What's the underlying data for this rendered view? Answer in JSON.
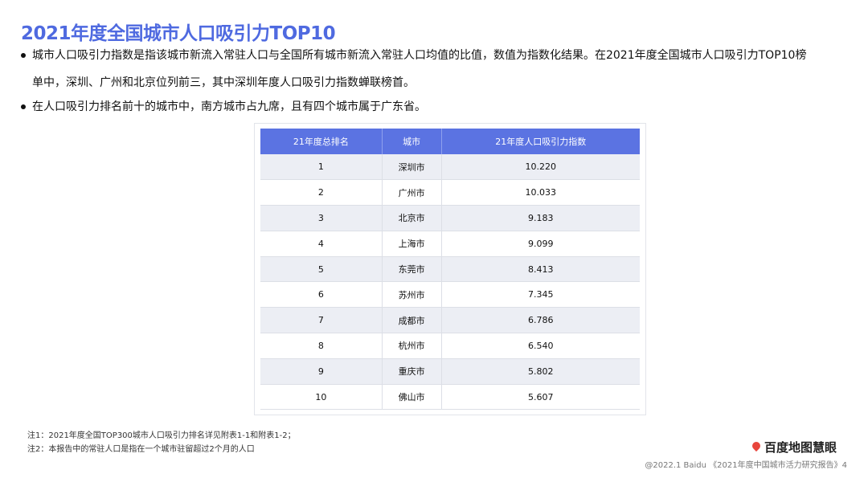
{
  "title": "2021年度全国城市人口吸引力TOP10",
  "bullets": [
    "城市人口吸引力指数是指该城市新流入常驻人口与全国所有城市新流入常驻人口均值的比值，数值为指数化结果。在2021年度全国城市人口吸引力TOP10榜",
    "单中，深圳、广州和北京位列前三，其中深圳年度人口吸引力指数蝉联榜首。",
    "在人口吸引力排名前十的城市中，南方城市占九席，且有四个城市属于广东省。"
  ],
  "table": {
    "headers": [
      "21年度总排名",
      "城市",
      "21年度人口吸引力指数"
    ],
    "rows": [
      [
        "1",
        "深圳市",
        "10.220"
      ],
      [
        "2",
        "广州市",
        "10.033"
      ],
      [
        "3",
        "北京市",
        "9.183"
      ],
      [
        "4",
        "上海市",
        "9.099"
      ],
      [
        "5",
        "东莞市",
        "8.413"
      ],
      [
        "6",
        "苏州市",
        "7.345"
      ],
      [
        "7",
        "成都市",
        "6.786"
      ],
      [
        "8",
        "杭州市",
        "6.540"
      ],
      [
        "9",
        "重庆市",
        "5.802"
      ],
      [
        "10",
        "佛山市",
        "5.607"
      ]
    ]
  },
  "notes": [
    "注1：2021年度全国TOP300城市人口吸引力排名详见附表1-1和附表1-2；",
    "注2：本报告中的常驻人口是指在一个城市驻留超过2个月的人口"
  ],
  "logo": "百度地图慧眼",
  "footer": "@2022.1 Baidu 《2021年度中国城市活力研究报告》4",
  "colors": {
    "accent": "#4f6ae0",
    "header_bg": "#5b73e2",
    "odd_row": "#eceef4"
  }
}
